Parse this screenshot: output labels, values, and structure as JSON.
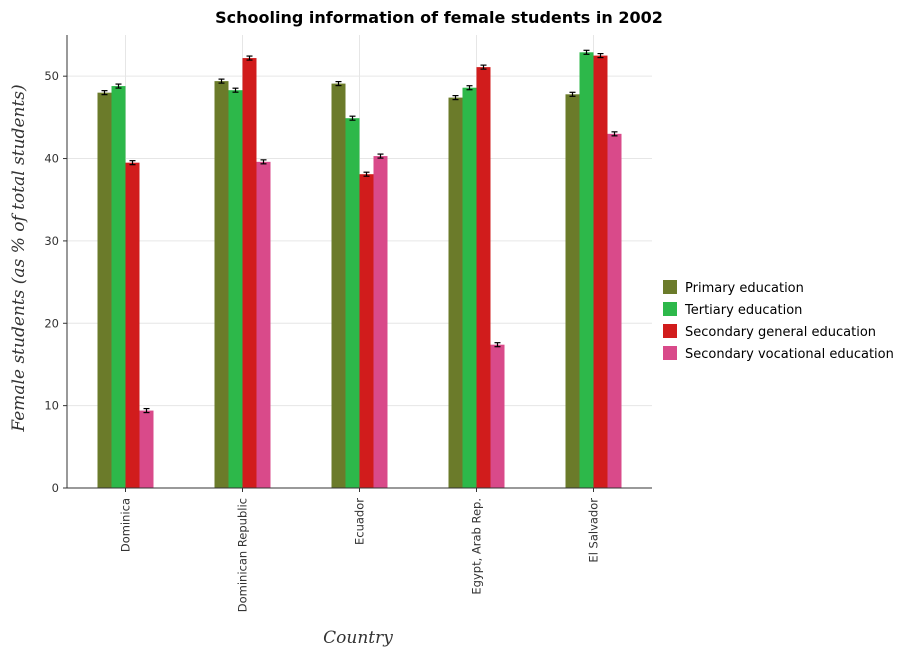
{
  "chart_data": {
    "type": "bar",
    "title": "Schooling information of female students in 2002",
    "xlabel": "Country",
    "ylabel": "Female students (as % of total students)",
    "categories": [
      "Dominica",
      "Dominican Republic",
      "Ecuador",
      "Egypt, Arab Rep.",
      "El Salvador"
    ],
    "ylim": [
      0,
      55
    ],
    "yticks": [
      0,
      10,
      20,
      30,
      40,
      50
    ],
    "grid": true,
    "legend_position": "right",
    "series": [
      {
        "name": "Primary education",
        "color": "#6b7b2a",
        "values": [
          48.0,
          49.4,
          49.1,
          47.4,
          47.8
        ]
      },
      {
        "name": "Tertiary education",
        "color": "#2db84a",
        "values": [
          48.8,
          48.3,
          44.9,
          48.6,
          52.9
        ]
      },
      {
        "name": "Secondary general education",
        "color": "#d11c1c",
        "values": [
          39.5,
          52.2,
          38.1,
          51.1,
          52.5
        ]
      },
      {
        "name": "Secondary vocational education",
        "color": "#d94a8a",
        "values": [
          9.4,
          39.6,
          40.3,
          17.4,
          43.0
        ]
      }
    ]
  }
}
